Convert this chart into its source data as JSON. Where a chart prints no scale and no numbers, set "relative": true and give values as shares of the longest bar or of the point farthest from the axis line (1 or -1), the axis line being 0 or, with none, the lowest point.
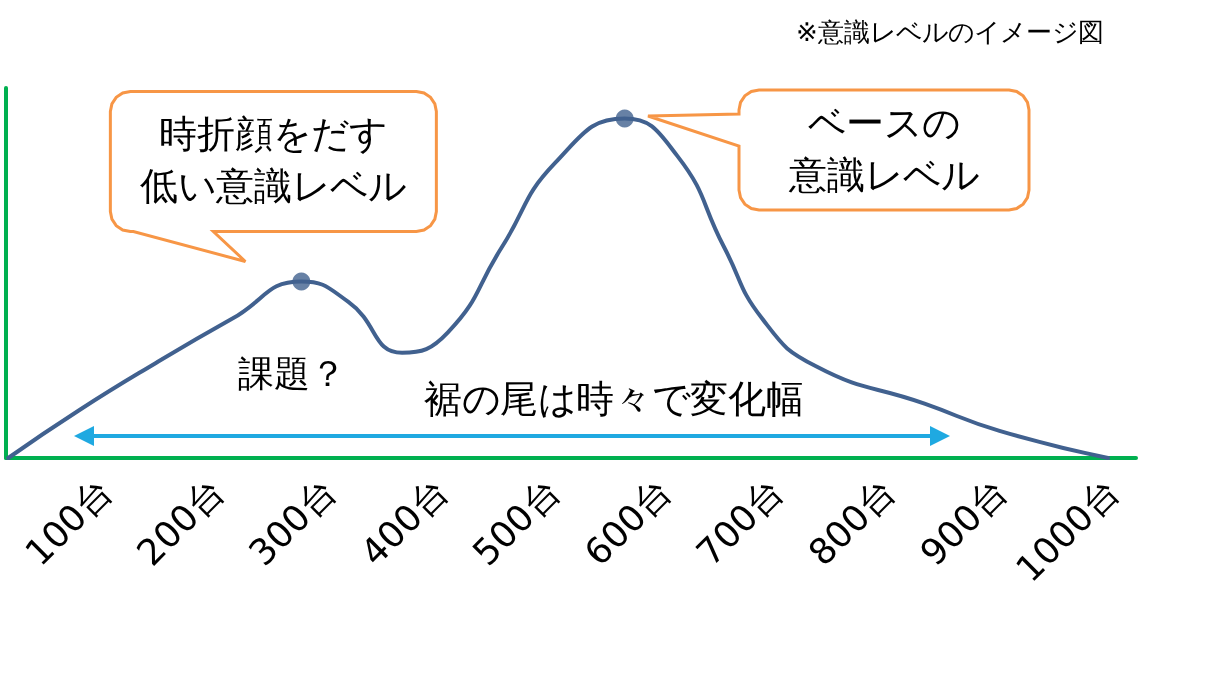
{
  "chart_data": {
    "type": "line",
    "relative": true,
    "marker": "none",
    "line_style": "solid",
    "grid": false,
    "tick_labels": "x",
    "xlim": [
      10,
      1020
    ],
    "xticks": [
      {
        "value": 100,
        "label": "100台"
      },
      {
        "value": 200,
        "label": "200台"
      },
      {
        "value": 300,
        "label": "300台"
      },
      {
        "value": 400,
        "label": "400台"
      },
      {
        "value": 500,
        "label": "500台"
      },
      {
        "value": 600,
        "label": "600台"
      },
      {
        "value": 700,
        "label": "700台"
      },
      {
        "value": 800,
        "label": "800台"
      },
      {
        "value": 900,
        "label": "900台"
      },
      {
        "value": 1000,
        "label": "1000台"
      }
    ],
    "series": [
      {
        "color": "#41618f",
        "x": [
          12,
          75,
          144,
          212,
          274,
          316,
          364,
          405,
          453,
          501,
          563,
          610,
          652,
          686,
          734,
          831,
          898,
          995
        ],
        "values": [
          0,
          0.14,
          0.28,
          0.41,
          0.52,
          0.46,
          0.31,
          0.37,
          0.62,
          0.87,
          1,
          0.89,
          0.62,
          0.41,
          0.27,
          0.16,
          0.08,
          0
        ]
      },
      {
        "type": "scatter",
        "color": "#41618f",
        "marker": "circle",
        "x": [
          274,
          563
        ],
        "values": [
          0.52,
          1
        ]
      }
    ],
    "annotations": [
      {
        "text": "時折顔をだす低い意識レベル",
        "x": 274,
        "y": 0.52
      },
      "ベースの意識レベル",
      {
        "text": "課題？",
        "x": 364,
        "y": 0.31
      },
      "裾の尾は時々で変化幅",
      "※意識レベルのイメージ図"
    ]
  }
}
